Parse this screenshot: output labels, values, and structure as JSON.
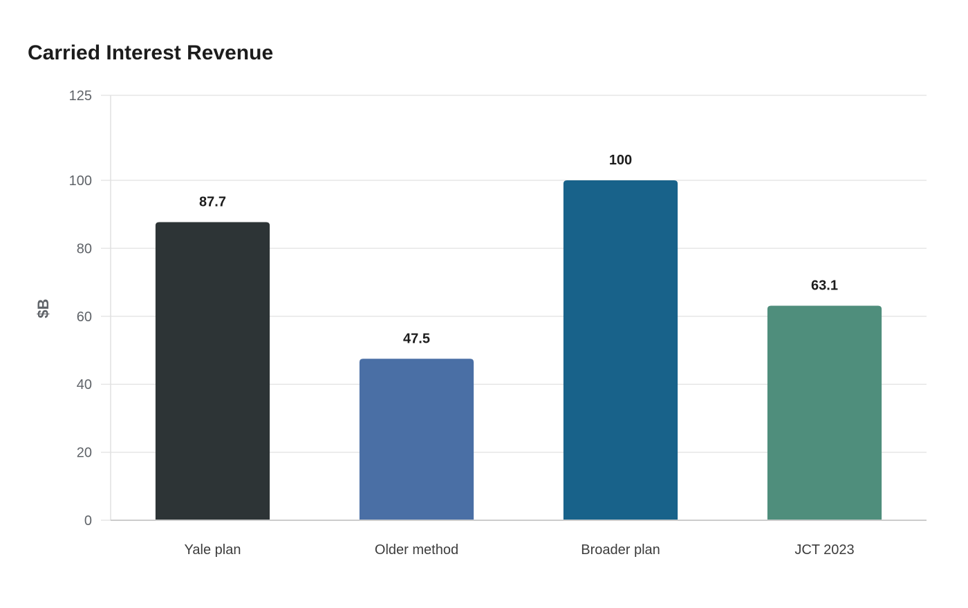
{
  "chart_data": {
    "type": "bar",
    "title": "Carried Interest Revenue",
    "xlabel": "",
    "ylabel": "$B",
    "categories": [
      "Yale plan",
      "Older method",
      "Broader plan",
      "JCT 2023"
    ],
    "values": [
      87.7,
      47.5,
      100,
      63.1
    ],
    "value_labels": [
      "87.7",
      "47.5",
      "100",
      "63.1"
    ],
    "colors": [
      "#2d3436",
      "#4a6fa5",
      "#18628a",
      "#4f8e7c"
    ],
    "ylim": [
      0,
      125
    ],
    "yticks": [
      0,
      20,
      40,
      60,
      80,
      100,
      125
    ],
    "grid": true,
    "legend": "none"
  }
}
